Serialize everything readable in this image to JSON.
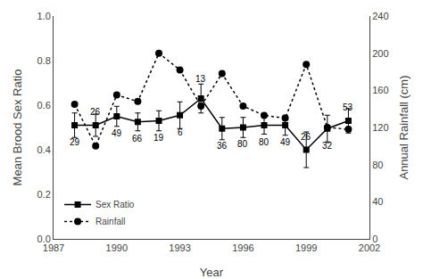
{
  "chart_data": {
    "type": "line",
    "x": [
      1988,
      1989,
      1990,
      1991,
      1992,
      1993,
      1994,
      1995,
      1996,
      1997,
      1998,
      1999,
      2000,
      2001
    ],
    "xlabel": "Year",
    "ylabel": "Mean Brood Sex Ratio",
    "y2label": "Annual Rainfall (cm)",
    "xlim": [
      1987,
      2002
    ],
    "xticks": [
      1987,
      1990,
      1993,
      1996,
      1999,
      2002
    ],
    "ylim": [
      0.0,
      1.0
    ],
    "yticks": [
      {
        "value": 0.0,
        "label": "0.0"
      },
      0.2,
      0.4,
      0.6,
      0.8,
      {
        "value": 1.0,
        "label": "1.0"
      }
    ],
    "y2lim": [
      0,
      240
    ],
    "y2ticks": [
      0,
      40,
      80,
      120,
      160,
      200,
      240
    ],
    "grid": false,
    "legend": "lower left",
    "series": [
      {
        "name": "Sex Ratio",
        "color": "black",
        "marker": "square",
        "line_style": "solid",
        "values": [
          0.51,
          0.51,
          0.55,
          0.525,
          0.53,
          0.555,
          0.63,
          0.495,
          0.5,
          0.51,
          0.51,
          0.4,
          0.495,
          0.53
        ],
        "errors": [
          0.055,
          0.05,
          0.045,
          0.04,
          0.045,
          0.06,
          0.065,
          0.05,
          0.045,
          0.04,
          0.045,
          0.08,
          0.06,
          0.055
        ]
      },
      {
        "name": "Rainfall",
        "axis": "y2",
        "color": "black",
        "marker": "circle",
        "line_style": "dotted",
        "values": [
          145,
          100,
          155,
          148,
          200,
          182,
          143,
          178,
          143,
          133,
          130,
          188,
          120,
          118
        ]
      }
    ],
    "annotations": [
      {
        "x": 1988,
        "y": 0.435,
        "text": "29"
      },
      {
        "x": 1989,
        "y": 0.57,
        "text": "26"
      },
      {
        "x": 1990,
        "y": 0.475,
        "text": "49"
      },
      {
        "x": 1991,
        "y": 0.45,
        "text": "66"
      },
      {
        "x": 1992,
        "y": 0.455,
        "text": "19"
      },
      {
        "x": 1993,
        "y": 0.48,
        "text": "6"
      },
      {
        "x": 1994,
        "y": 0.72,
        "text": "13"
      },
      {
        "x": 1995,
        "y": 0.42,
        "text": "36"
      },
      {
        "x": 1996,
        "y": 0.425,
        "text": "80"
      },
      {
        "x": 1997,
        "y": 0.435,
        "text": "80"
      },
      {
        "x": 1998,
        "y": 0.435,
        "text": "49"
      },
      {
        "x": 1999,
        "y": 0.46,
        "text": "26"
      },
      {
        "x": 2000,
        "y": 0.42,
        "text": "32"
      },
      {
        "x": 2001,
        "y": 0.59,
        "text": "53"
      }
    ]
  }
}
